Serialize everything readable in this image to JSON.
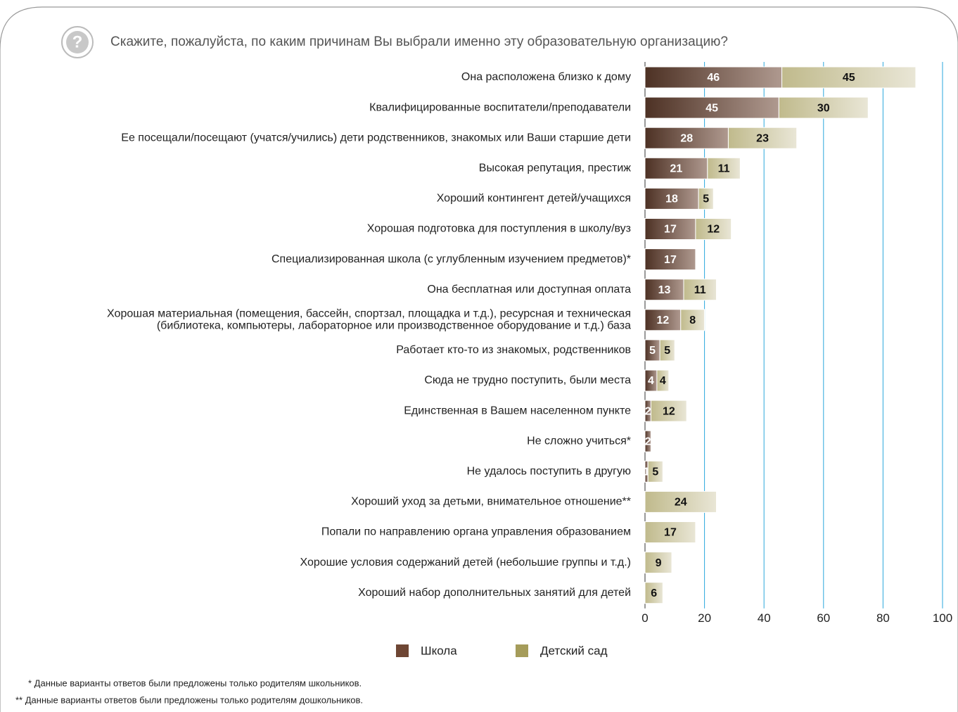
{
  "chart_data": {
    "type": "stacked_barh",
    "title": "Скажите, пожалуйста, по каким причинам Вы выбрали именно эту образовательную организацию?",
    "categories": [
      "Она расположена близко к дому",
      "Квалифицированные воспитатели/преподаватели",
      "Ее посещали/посещают (учатся/учились) дети родственников, знакомых или Ваши старшие дети",
      "Высокая репутация, престиж",
      "Хороший контингент детей/учащихся",
      "Хорошая подготовка для поступления в школу/вуз",
      "Специализированная школа (с углубленным изучением предметов)*",
      "Она бесплатная или доступная оплата",
      "Хорошая материальная  (помещения, бассейн, спортзал, площадка и т.д.), ресурсная и техническая\n(библиотека, компьютеры, лабораторное или производственное оборудование и т.д.) база",
      "Работает кто-то из знакомых, родственников",
      "Сюда не трудно поступить, были места",
      "Единственная в Вашем населенном пункте",
      "Не сложно учиться*",
      "Не удалось поступить в другую",
      "Хороший уход за детьми, внимательное отношение**",
      "Попали по направлению органа управления образованием",
      "Хорошие условия содержаний детей (небольшие группы и т.д.)",
      "Хороший набор дополнительных занятий для детей"
    ],
    "series": [
      {
        "name": "Школа",
        "color": "#6e4634",
        "values": [
          46,
          45,
          28,
          21,
          18,
          17,
          17,
          13,
          12,
          5,
          4,
          2,
          2,
          1,
          null,
          null,
          null,
          null
        ]
      },
      {
        "name": "Детский сад",
        "color": "#a59c5a",
        "values": [
          45,
          30,
          23,
          11,
          5,
          12,
          null,
          11,
          8,
          5,
          4,
          12,
          null,
          5,
          24,
          17,
          9,
          6
        ]
      }
    ],
    "xlim": [
      0,
      100
    ],
    "xticks": [
      0,
      20,
      40,
      60,
      80,
      100
    ],
    "grid": true,
    "footnotes": [
      "* Данные варианты ответов были предложены только родителям школьников.",
      "** Данные варианты ответов были предложены только родителям дошкольников."
    ]
  }
}
